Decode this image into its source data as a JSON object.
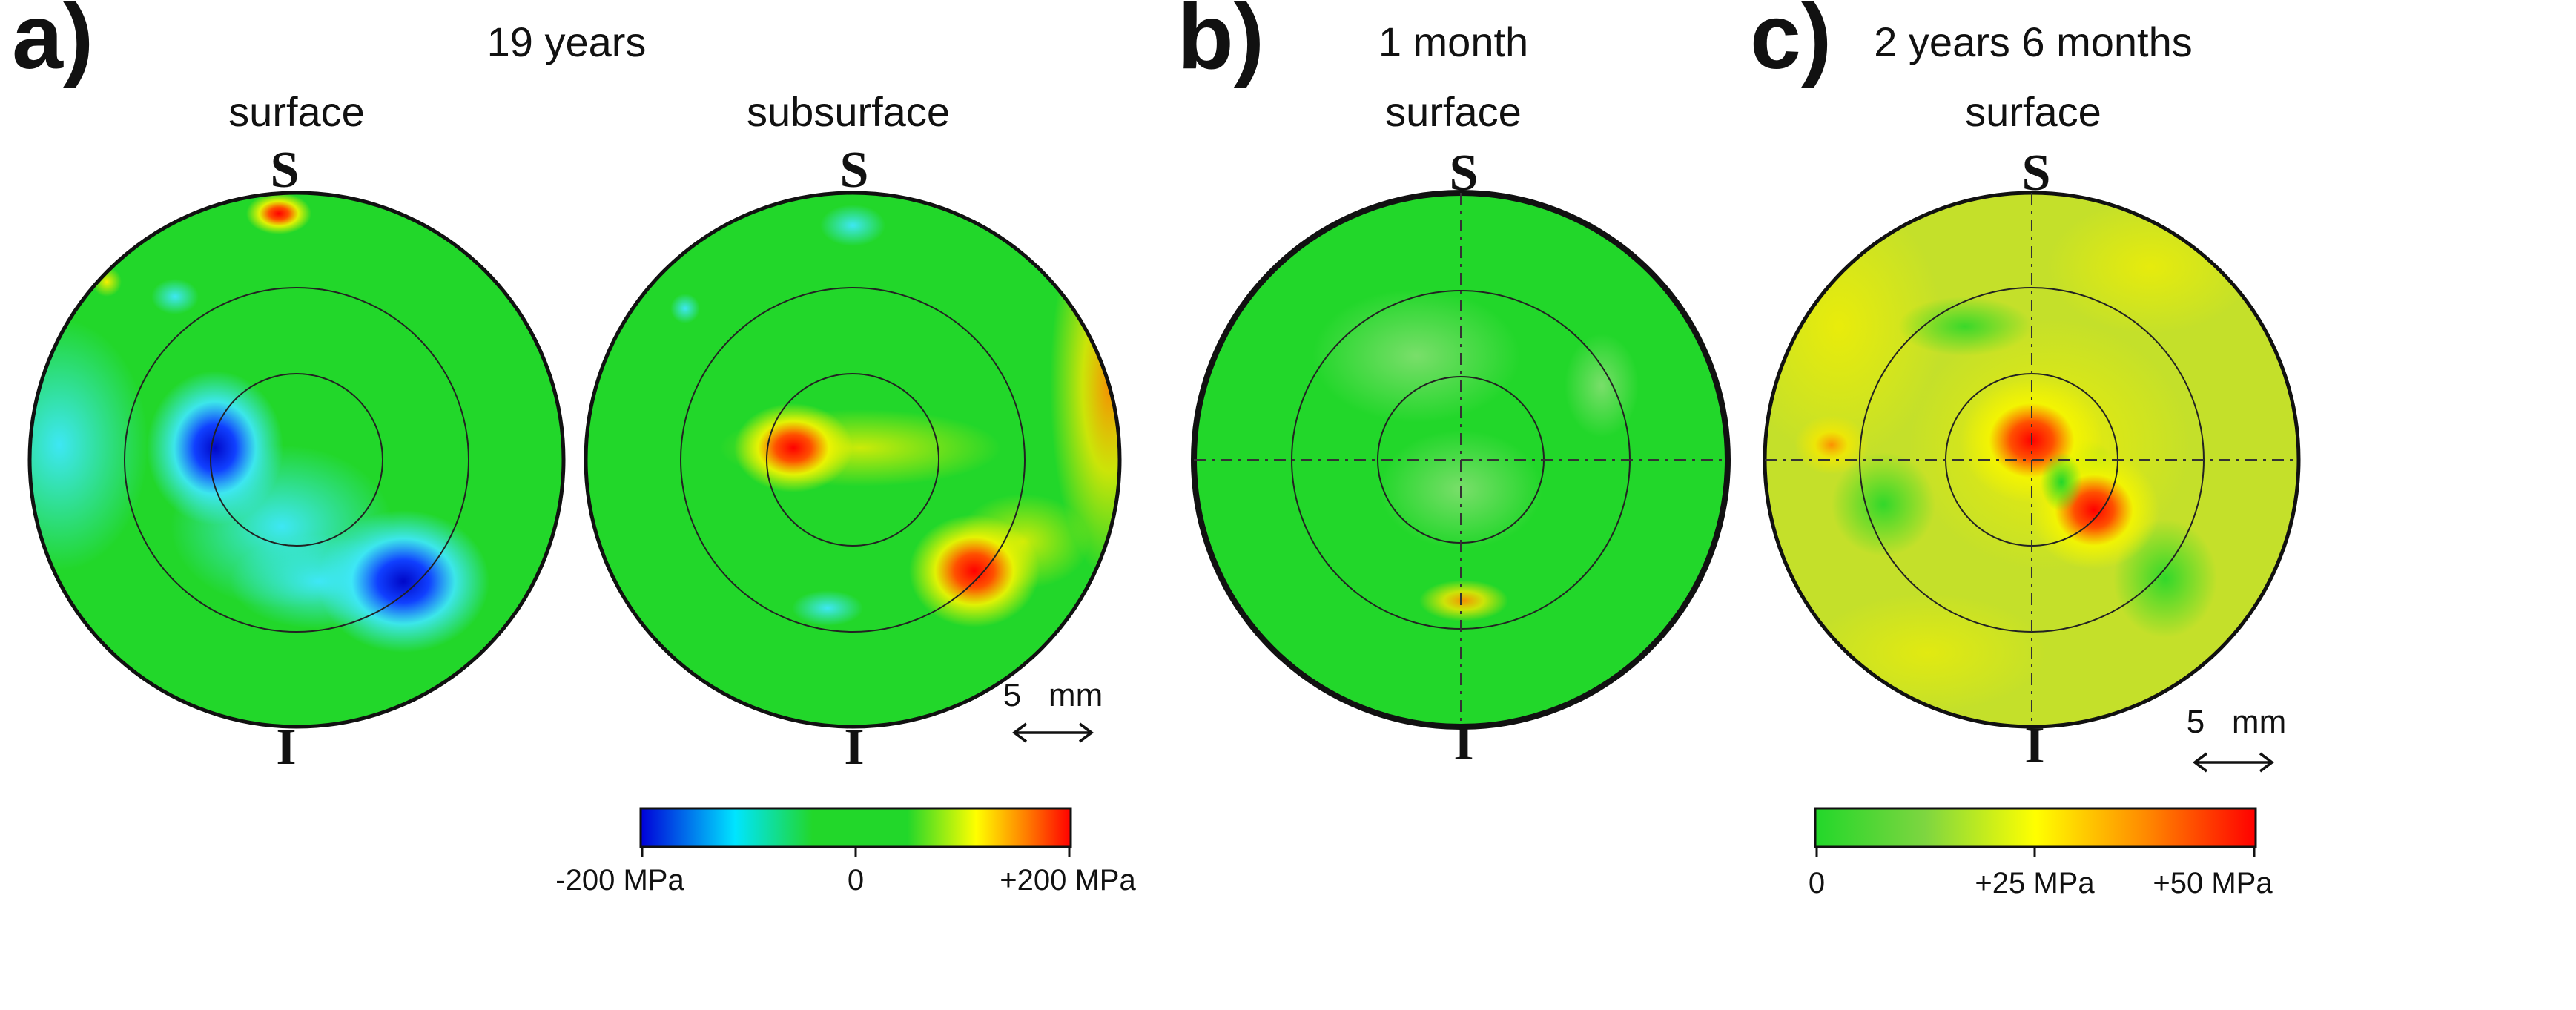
{
  "panels": {
    "a": {
      "letter": "a)",
      "title": "19 years",
      "surface": {
        "label": "surface",
        "top": "S",
        "bottom": "I"
      },
      "subsurface": {
        "label": "subsurface",
        "top": "S",
        "bottom": "I"
      },
      "scale": "5   mm",
      "colorbar": {
        "labels": [
          "-200 MPa",
          "0",
          "+200 MPa"
        ],
        "colors": [
          "#0000d8",
          "#00e5ff",
          "#22d72a",
          "#22d72a",
          "#ffff00",
          "#ff7a00",
          "#ff0000"
        ]
      }
    },
    "b": {
      "letter": "b)",
      "title": "1 month",
      "surface": {
        "label": "surface",
        "top": "S",
        "bottom": "I"
      }
    },
    "c": {
      "letter": "c)",
      "title": "2 years 6 months",
      "surface": {
        "label": "surface",
        "top": "S",
        "bottom": "I"
      },
      "scale": "5   mm",
      "colorbar": {
        "labels": [
          "0",
          "+25 MPa",
          "+50 MPa"
        ],
        "colors": [
          "#22d72a",
          "#7ed640",
          "#ffff00",
          "#ff8a00",
          "#ff0000"
        ]
      }
    }
  },
  "palette": {
    "green": "#22d72a",
    "blue": "#0010e0",
    "cyan": "#3fe8ff",
    "yellow": "#f5f500",
    "red": "#ff1500",
    "orange": "#ff8c00"
  }
}
